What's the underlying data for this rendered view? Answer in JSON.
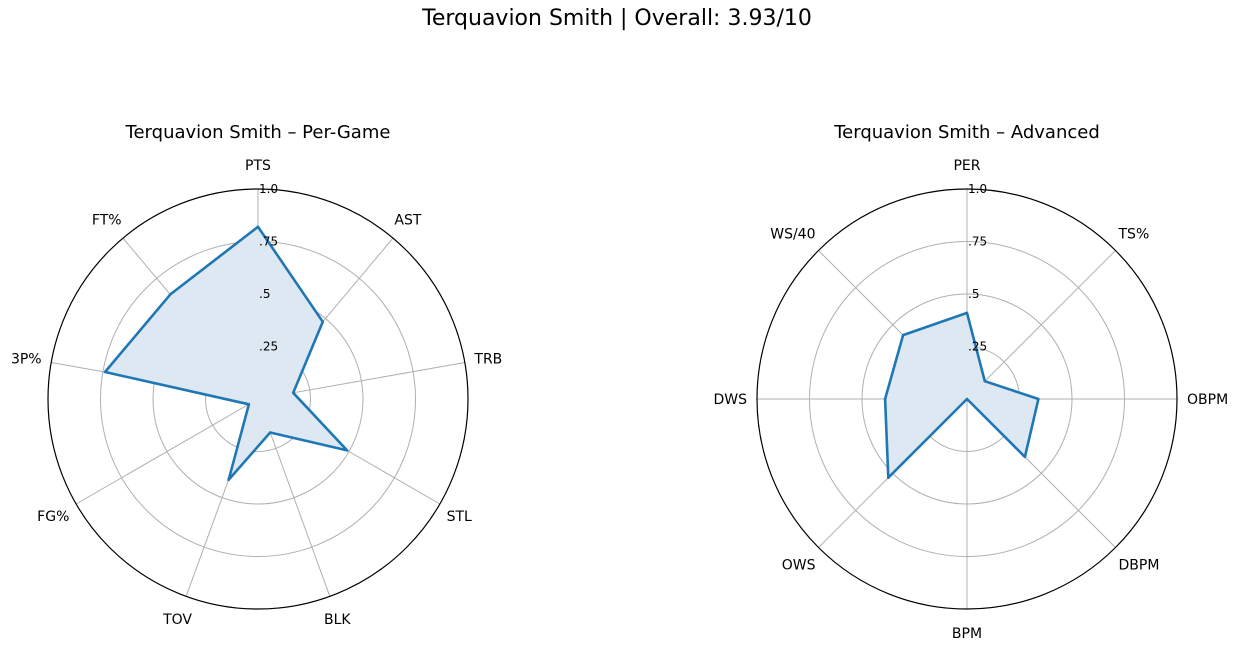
{
  "figure": {
    "title": "Terquavion Smith | Overall: 3.93/10"
  },
  "chart_data": [
    {
      "type": "radar",
      "title": "Terquavion Smith – Per-Game",
      "categories": [
        "PTS",
        "AST",
        "TRB",
        "STL",
        "BLK",
        "TOV",
        "FG%",
        "3P%",
        "FT%"
      ],
      "values": [
        0.82,
        0.48,
        0.17,
        0.49,
        0.17,
        0.41,
        0.05,
        0.74,
        0.65
      ],
      "radial_ticks": [
        0.25,
        0.5,
        0.75,
        1.0
      ],
      "radial_tick_labels": [
        ".25",
        ".5",
        ".75",
        "1.0"
      ],
      "ylim": [
        0,
        1
      ],
      "grid": true,
      "line_color": "#1f77b4",
      "fill_color": "#dde8f3"
    },
    {
      "type": "radar",
      "title": "Terquavion Smith – Advanced",
      "categories": [
        "PER",
        "TS%",
        "OBPM",
        "DBPM",
        "BPM",
        "OWS",
        "DWS",
        "WS/40"
      ],
      "values": [
        0.41,
        0.12,
        0.34,
        0.39,
        0.0,
        0.53,
        0.39,
        0.43
      ],
      "radial_ticks": [
        0.25,
        0.5,
        0.75,
        1.0
      ],
      "radial_tick_labels": [
        ".25",
        ".5",
        ".75",
        "1.0"
      ],
      "ylim": [
        0,
        1
      ],
      "grid": true,
      "line_color": "#1f77b4",
      "fill_color": "#dde8f3"
    }
  ]
}
